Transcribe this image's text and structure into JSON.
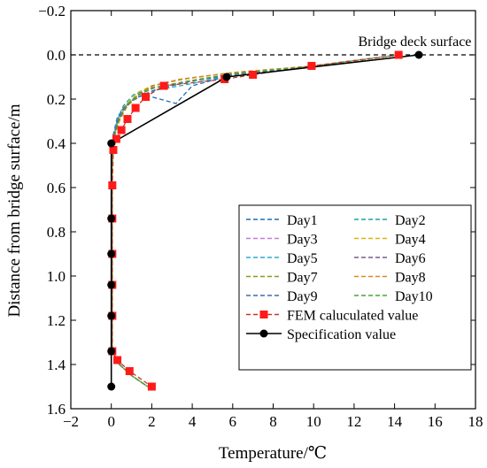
{
  "chart_data": {
    "type": "line",
    "title": "",
    "xlabel": "Temperature/℃",
    "ylabel": "Distance from bridge surface/m",
    "xlim": [
      -2,
      18
    ],
    "ylim": [
      -0.2,
      1.6
    ],
    "y_inverted": true,
    "x_ticks": [
      -2,
      0,
      2,
      4,
      6,
      8,
      10,
      12,
      14,
      16,
      18
    ],
    "y_ticks": [
      -0.2,
      0.0,
      0.2,
      0.4,
      0.6,
      0.8,
      1.0,
      1.2,
      1.4,
      1.6
    ],
    "x_tick_labels": [
      "−2",
      "0",
      "2",
      "4",
      "6",
      "8",
      "10",
      "12",
      "14",
      "16",
      "18"
    ],
    "y_tick_labels": [
      "−0.2",
      "0.0",
      "0.2",
      "0.4",
      "0.6",
      "0.8",
      "1.0",
      "1.2",
      "1.4",
      "1.6"
    ],
    "grid": false,
    "legend_position": "bottom-right",
    "annotations": [
      {
        "text": "Bridge deck surface",
        "x": 15.0,
        "y": -0.04
      }
    ],
    "reference_line": {
      "style": "dashed",
      "y": 0.0,
      "color": "#000000"
    },
    "series": [
      {
        "name": "Day1",
        "style": "dashed",
        "color": "#1f6fb4",
        "points": [
          [
            14.3,
            0.0
          ],
          [
            10,
            0.05
          ],
          [
            6,
            0.09
          ],
          [
            4,
            0.14
          ],
          [
            3.2,
            0.22
          ],
          [
            1.6,
            0.18
          ],
          [
            0.8,
            0.22
          ],
          [
            0.3,
            0.28
          ],
          [
            0.1,
            0.36
          ],
          [
            0.05,
            0.5
          ],
          [
            0.05,
            0.8
          ],
          [
            0.05,
            1.1
          ],
          [
            0.05,
            1.34
          ],
          [
            0.4,
            1.4
          ],
          [
            1.0,
            1.45
          ],
          [
            1.8,
            1.5
          ]
        ]
      },
      {
        "name": "Day2",
        "style": "dashed",
        "color": "#1aa39a",
        "points": [
          [
            14.3,
            0.0
          ],
          [
            10,
            0.05
          ],
          [
            6,
            0.09
          ],
          [
            3.8,
            0.12
          ],
          [
            2.0,
            0.15
          ],
          [
            1.1,
            0.18
          ],
          [
            0.6,
            0.23
          ],
          [
            0.3,
            0.29
          ],
          [
            0.1,
            0.38
          ],
          [
            0.05,
            0.5
          ],
          [
            0.05,
            0.8
          ],
          [
            0.05,
            1.1
          ],
          [
            0.05,
            1.34
          ],
          [
            0.4,
            1.4
          ],
          [
            1.0,
            1.45
          ],
          [
            1.8,
            1.5
          ]
        ]
      },
      {
        "name": "Day3",
        "style": "dashed",
        "color": "#c27bd8",
        "points": [
          [
            14.3,
            0.0
          ],
          [
            10,
            0.05
          ],
          [
            6,
            0.09
          ],
          [
            3.9,
            0.12
          ],
          [
            2.1,
            0.15
          ],
          [
            1.2,
            0.19
          ],
          [
            0.6,
            0.24
          ],
          [
            0.3,
            0.3
          ],
          [
            0.1,
            0.38
          ],
          [
            0.05,
            0.5
          ],
          [
            0.05,
            0.8
          ],
          [
            0.05,
            1.1
          ],
          [
            0.05,
            1.34
          ],
          [
            0.4,
            1.4
          ],
          [
            1.0,
            1.45
          ],
          [
            1.8,
            1.5
          ]
        ]
      },
      {
        "name": "Day4",
        "style": "dashed",
        "color": "#d9b40f",
        "points": [
          [
            14.3,
            0.0
          ],
          [
            10,
            0.05
          ],
          [
            6,
            0.08
          ],
          [
            3.6,
            0.11
          ],
          [
            2.0,
            0.14
          ],
          [
            1.3,
            0.17
          ],
          [
            0.7,
            0.23
          ],
          [
            0.35,
            0.3
          ],
          [
            0.12,
            0.38
          ],
          [
            0.05,
            0.5
          ],
          [
            0.05,
            0.8
          ],
          [
            0.05,
            1.1
          ],
          [
            0.05,
            1.34
          ],
          [
            0.4,
            1.4
          ],
          [
            1.0,
            1.45
          ],
          [
            1.8,
            1.5
          ]
        ]
      },
      {
        "name": "Day5",
        "style": "dashed",
        "color": "#2aaad6",
        "points": [
          [
            14.3,
            0.0
          ],
          [
            10,
            0.05
          ],
          [
            6,
            0.09
          ],
          [
            4.0,
            0.13
          ],
          [
            2.2,
            0.16
          ],
          [
            1.1,
            0.2
          ],
          [
            0.5,
            0.25
          ],
          [
            0.25,
            0.31
          ],
          [
            0.1,
            0.38
          ],
          [
            0.05,
            0.5
          ],
          [
            0.05,
            0.8
          ],
          [
            0.05,
            1.1
          ],
          [
            0.05,
            1.34
          ],
          [
            0.4,
            1.4
          ],
          [
            1.0,
            1.45
          ],
          [
            1.8,
            1.5
          ]
        ]
      },
      {
        "name": "Day6",
        "style": "dashed",
        "color": "#7a5c8e",
        "points": [
          [
            14.3,
            0.0
          ],
          [
            10,
            0.05
          ],
          [
            6,
            0.085
          ],
          [
            3.7,
            0.12
          ],
          [
            2.0,
            0.15
          ],
          [
            1.2,
            0.19
          ],
          [
            0.6,
            0.24
          ],
          [
            0.3,
            0.3
          ],
          [
            0.1,
            0.38
          ],
          [
            0.05,
            0.5
          ],
          [
            0.05,
            0.8
          ],
          [
            0.05,
            1.1
          ],
          [
            0.05,
            1.34
          ],
          [
            0.4,
            1.4
          ],
          [
            1.0,
            1.45
          ],
          [
            1.8,
            1.5
          ]
        ]
      },
      {
        "name": "Day7",
        "style": "dashed",
        "color": "#8a9a1c",
        "points": [
          [
            14.3,
            0.0
          ],
          [
            10,
            0.05
          ],
          [
            6,
            0.08
          ],
          [
            3.4,
            0.11
          ],
          [
            2.0,
            0.14
          ],
          [
            1.5,
            0.17
          ],
          [
            0.8,
            0.22
          ],
          [
            0.4,
            0.29
          ],
          [
            0.12,
            0.38
          ],
          [
            0.05,
            0.5
          ],
          [
            0.05,
            0.8
          ],
          [
            0.05,
            1.1
          ],
          [
            0.05,
            1.34
          ],
          [
            0.4,
            1.4
          ],
          [
            1.0,
            1.45
          ],
          [
            1.8,
            1.5
          ]
        ]
      },
      {
        "name": "Day8",
        "style": "dashed",
        "color": "#e0871a",
        "points": [
          [
            14.3,
            0.0
          ],
          [
            10,
            0.05
          ],
          [
            6,
            0.08
          ],
          [
            3.5,
            0.11
          ],
          [
            2.1,
            0.14
          ],
          [
            1.4,
            0.18
          ],
          [
            0.8,
            0.23
          ],
          [
            0.4,
            0.3
          ],
          [
            0.12,
            0.38
          ],
          [
            0.05,
            0.5
          ],
          [
            0.05,
            0.8
          ],
          [
            0.05,
            1.1
          ],
          [
            0.05,
            1.34
          ],
          [
            0.4,
            1.4
          ],
          [
            1.0,
            1.45
          ],
          [
            1.8,
            1.5
          ]
        ]
      },
      {
        "name": "Day9",
        "style": "dashed",
        "color": "#3a6fb0",
        "points": [
          [
            14.3,
            0.0
          ],
          [
            10,
            0.05
          ],
          [
            6,
            0.09
          ],
          [
            3.9,
            0.12
          ],
          [
            2.1,
            0.16
          ],
          [
            1.1,
            0.2
          ],
          [
            0.5,
            0.26
          ],
          [
            0.25,
            0.32
          ],
          [
            0.1,
            0.39
          ],
          [
            0.05,
            0.5
          ],
          [
            0.05,
            0.8
          ],
          [
            0.05,
            1.1
          ],
          [
            0.05,
            1.34
          ],
          [
            0.4,
            1.4
          ],
          [
            1.0,
            1.45
          ],
          [
            1.8,
            1.5
          ]
        ]
      },
      {
        "name": "Day10",
        "style": "dashed",
        "color": "#44a832",
        "points": [
          [
            14.3,
            0.0
          ],
          [
            10,
            0.05
          ],
          [
            6,
            0.085
          ],
          [
            3.8,
            0.12
          ],
          [
            2.1,
            0.15
          ],
          [
            1.3,
            0.18
          ],
          [
            0.7,
            0.24
          ],
          [
            0.35,
            0.3
          ],
          [
            0.12,
            0.38
          ],
          [
            0.05,
            0.5
          ],
          [
            0.05,
            0.8
          ],
          [
            0.05,
            1.1
          ],
          [
            0.05,
            1.34
          ],
          [
            0.4,
            1.4
          ],
          [
            1.0,
            1.45
          ],
          [
            1.8,
            1.5
          ]
        ]
      },
      {
        "name": "FEM caluculated value",
        "style": "dashed-marker",
        "color": "#c0392b",
        "marker": "square",
        "marker_color": "#ff1a1a",
        "points": [
          [
            14.2,
            0.0
          ],
          [
            9.9,
            0.05
          ],
          [
            7.0,
            0.09
          ],
          [
            5.6,
            0.11
          ],
          [
            2.6,
            0.14
          ],
          [
            1.7,
            0.19
          ],
          [
            1.2,
            0.24
          ],
          [
            0.8,
            0.29
          ],
          [
            0.5,
            0.34
          ],
          [
            0.25,
            0.38
          ],
          [
            0.1,
            0.43
          ],
          [
            0.05,
            0.59
          ],
          [
            0.05,
            0.74
          ],
          [
            0.05,
            0.9
          ],
          [
            0.05,
            1.04
          ],
          [
            0.05,
            1.18
          ],
          [
            0.05,
            1.34
          ],
          [
            0.3,
            1.38
          ],
          [
            0.9,
            1.43
          ],
          [
            2.0,
            1.5
          ]
        ]
      },
      {
        "name": "Specification value",
        "style": "solid-marker",
        "color": "#000000",
        "marker": "circle",
        "points": [
          [
            15.2,
            0.0
          ],
          [
            5.7,
            0.1
          ],
          [
            0.0,
            0.4
          ],
          [
            0.0,
            0.74
          ],
          [
            0.0,
            0.9
          ],
          [
            0.0,
            1.04
          ],
          [
            0.0,
            1.18
          ],
          [
            0.0,
            1.34
          ],
          [
            0.0,
            1.5
          ]
        ]
      }
    ]
  }
}
